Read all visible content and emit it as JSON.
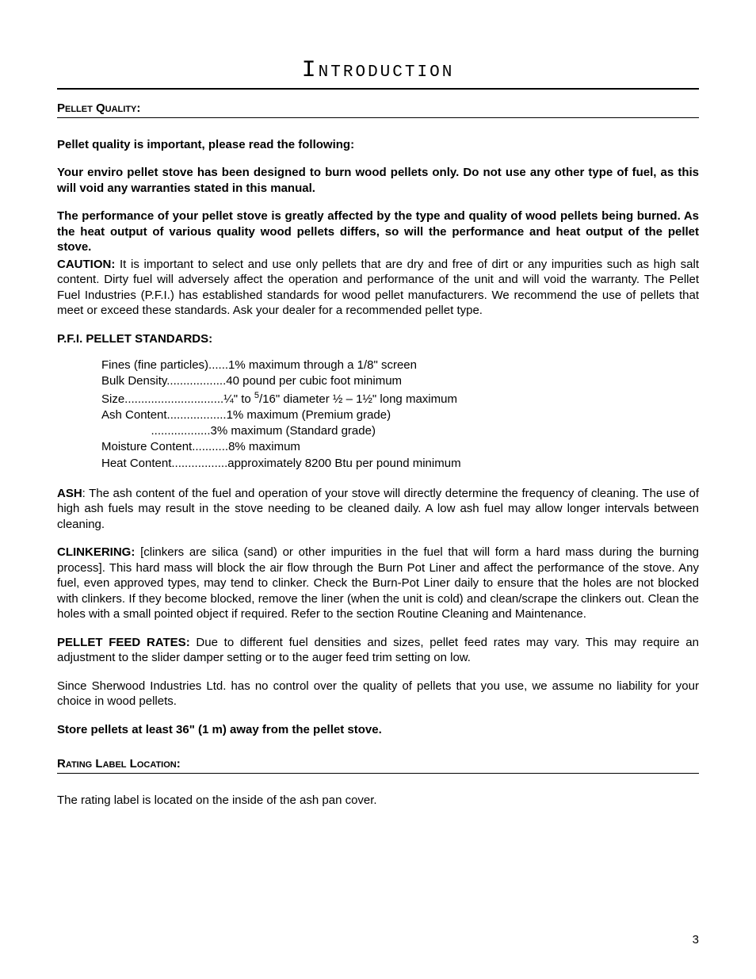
{
  "page": {
    "title": "Introduction",
    "pellet_quality_heading": "Pellet Quality:",
    "p1": "Pellet quality is important, please read the following:",
    "p2": "Your enviro pellet stove has been designed to burn wood pellets only. Do not use any other type of fuel, as this will void any warranties stated in this manual.",
    "p3": "The performance of your pellet stove is greatly affected by the type and quality of wood pellets being burned. As the heat output of various quality wood pellets differs, so will the performance and heat output of the pellet stove.",
    "caution_label": "CAUTION:",
    "caution_body": " It is important to select and use only pellets that are dry and free of dirt or any impurities such as high salt content. Dirty fuel will adversely affect the operation and performance of the unit and will void the warranty. The Pellet Fuel Industries (P.F.I.) has established standards for wood pellet manufacturers. We recommend the use of pellets that meet or exceed these standards. Ask your dealer for a recommended pellet type.",
    "standards_heading": "P.F.I. PELLET STANDARDS:",
    "standards": {
      "l1": "Fines (fine particles)......1% maximum through a 1/8\" screen",
      "l2": "Bulk Density..................40 pound per cubic foot minimum",
      "l3a": "Size..............................¼\" to ",
      "l3sup": "5",
      "l3b": "/16\" diameter ½ – 1½\" long maximum",
      "l4": "Ash Content..................1% maximum (Premium grade)",
      "l5": "               ..................3% maximum (Standard grade)",
      "l6": "Moisture Content...........8% maximum",
      "l7": "Heat Content.................approximately 8200 Btu per pound minimum"
    },
    "ash_label": "ASH",
    "ash_body": ": The ash content of the fuel and operation of your stove will directly determine the frequency of cleaning.  The use of high ash fuels may result in the stove needing to be cleaned daily.  A low ash fuel may allow longer intervals between cleaning.",
    "clinkering_label": "CLINKERING:",
    "clinkering_body": " [clinkers are silica (sand) or other impurities in the fuel that will form a hard mass during the burning process].  This hard mass will block the air flow through the Burn Pot Liner and affect the performance of the stove.  Any fuel, even approved types, may tend to clinker.  Check the Burn-Pot Liner daily to ensure that the holes are not blocked with clinkers. If they become blocked, remove the liner (when the unit is cold) and clean/scrape the clinkers out.  Clean the holes with a small pointed object if required.  Refer to the section Routine Cleaning and Maintenance.",
    "feed_label": "PELLET FEED RATES:",
    "feed_body": " Due to different fuel densities and sizes, pellet feed rates may vary.  This may require an adjustment to the slider damper setting or to the auger feed trim setting on low.",
    "liability": "Since Sherwood Industries Ltd. has no control over the quality of pellets that you use, we assume no liability for your choice in wood pellets.",
    "storage": "Store pellets at least 36\" (1 m) away from the pellet stove.",
    "rating_heading": "Rating Label Location:",
    "rating_body": "The rating label is located on the inside of the ash pan cover.",
    "page_number": "3"
  }
}
